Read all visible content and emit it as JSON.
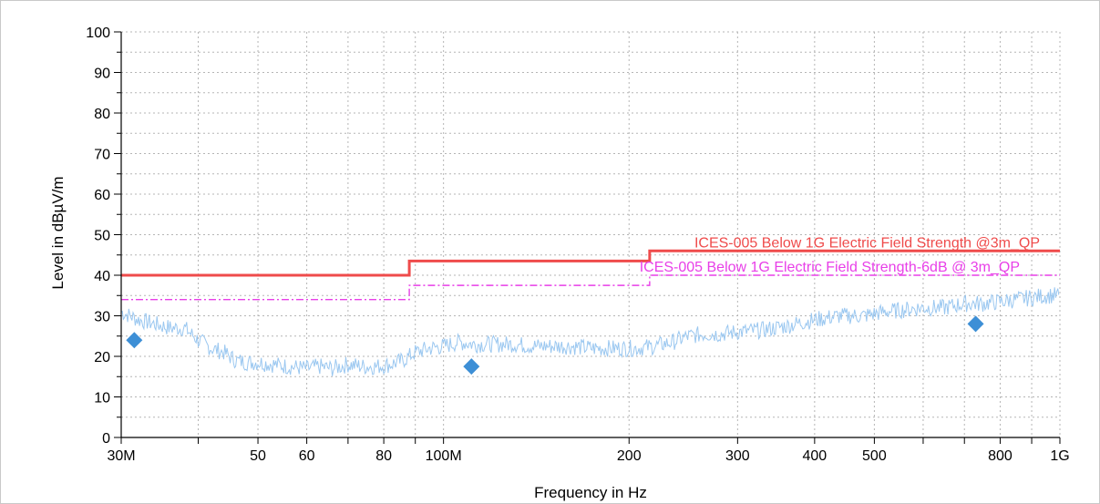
{
  "chart_data": {
    "type": "line",
    "xlabel": "Frequency in Hz",
    "ylabel": "Level in dBµV/m",
    "xscale": "log",
    "xlim": [
      30000000,
      1000000000
    ],
    "ylim": [
      0,
      100
    ],
    "grid": true,
    "x_ticks": [
      {
        "value": 30000000,
        "label": "30M"
      },
      {
        "value": 50000000,
        "label": "50"
      },
      {
        "value": 60000000,
        "label": "60"
      },
      {
        "value": 80000000,
        "label": "80"
      },
      {
        "value": 100000000,
        "label": "100M"
      },
      {
        "value": 200000000,
        "label": "200"
      },
      {
        "value": 300000000,
        "label": "300"
      },
      {
        "value": 400000000,
        "label": "400"
      },
      {
        "value": 500000000,
        "label": "500"
      },
      {
        "value": 800000000,
        "label": "800"
      },
      {
        "value": 1000000000,
        "label": "1G"
      }
    ],
    "y_ticks": [
      0,
      10,
      20,
      30,
      40,
      50,
      60,
      70,
      80,
      90,
      100
    ],
    "limit_lines": [
      {
        "label": "ICES-005 Below 1G Electric Field Strength @3m_QP",
        "color": "#ef4b4b",
        "style": "solid",
        "segments": [
          {
            "x_start": 30000000,
            "x_end": 88000000,
            "y": 40
          },
          {
            "x_start": 88000000,
            "x_end": 216000000,
            "y": 43.5
          },
          {
            "x_start": 216000000,
            "x_end": 1000000000,
            "y": 46
          }
        ]
      },
      {
        "label": "ICES-005 Below 1G Electric Field Strength-6dB @ 3m_QP",
        "color": "#e83fe8",
        "style": "dash-dot",
        "segments": [
          {
            "x_start": 30000000,
            "x_end": 88000000,
            "y": 34
          },
          {
            "x_start": 88000000,
            "x_end": 216000000,
            "y": 37.5
          },
          {
            "x_start": 216000000,
            "x_end": 1000000000,
            "y": 40
          }
        ]
      }
    ],
    "trace": {
      "color": "#9ac7f0",
      "points": [
        [
          30000000,
          31
        ],
        [
          32000000,
          29
        ],
        [
          34000000,
          28
        ],
        [
          36000000,
          27
        ],
        [
          38000000,
          27
        ],
        [
          40000000,
          24
        ],
        [
          42000000,
          22
        ],
        [
          44000000,
          21
        ],
        [
          46000000,
          19
        ],
        [
          48000000,
          18.5
        ],
        [
          50000000,
          18.5
        ],
        [
          53000000,
          18
        ],
        [
          56000000,
          17.5
        ],
        [
          60000000,
          17
        ],
        [
          63000000,
          17.5
        ],
        [
          66000000,
          17
        ],
        [
          70000000,
          18
        ],
        [
          74000000,
          17.5
        ],
        [
          78000000,
          17.5
        ],
        [
          82000000,
          18
        ],
        [
          86000000,
          19
        ],
        [
          90000000,
          21
        ],
        [
          95000000,
          22
        ],
        [
          100000000,
          22.5
        ],
        [
          106000000,
          23.5
        ],
        [
          112000000,
          23
        ],
        [
          120000000,
          23
        ],
        [
          130000000,
          23
        ],
        [
          140000000,
          22.5
        ],
        [
          150000000,
          22.5
        ],
        [
          160000000,
          22.5
        ],
        [
          175000000,
          22
        ],
        [
          190000000,
          22
        ],
        [
          205000000,
          22
        ],
        [
          220000000,
          22.5
        ],
        [
          235000000,
          23.5
        ],
        [
          250000000,
          25
        ],
        [
          265000000,
          25.5
        ],
        [
          280000000,
          25.5
        ],
        [
          300000000,
          26
        ],
        [
          330000000,
          26.5
        ],
        [
          360000000,
          27.5
        ],
        [
          400000000,
          29
        ],
        [
          440000000,
          30
        ],
        [
          480000000,
          30
        ],
        [
          520000000,
          31
        ],
        [
          560000000,
          31.5
        ],
        [
          600000000,
          32
        ],
        [
          650000000,
          32
        ],
        [
          700000000,
          33
        ],
        [
          750000000,
          33
        ],
        [
          800000000,
          33.5
        ],
        [
          850000000,
          34
        ],
        [
          900000000,
          34.5
        ],
        [
          950000000,
          35
        ],
        [
          1000000000,
          35
        ]
      ]
    },
    "markers": {
      "color": "#3d8fd6",
      "shape": "diamond",
      "points": [
        {
          "x": 31500000,
          "y": 24
        },
        {
          "x": 111000000,
          "y": 17.5
        },
        {
          "x": 730000000,
          "y": 28
        }
      ]
    }
  }
}
